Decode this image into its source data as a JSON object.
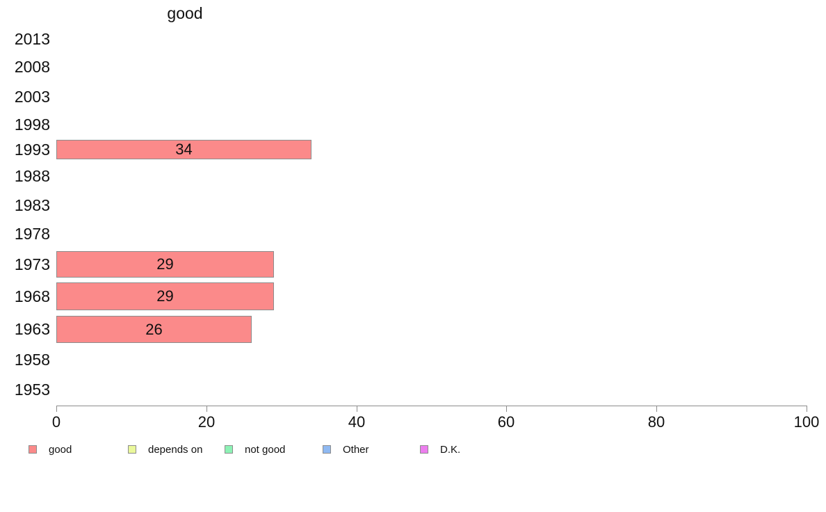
{
  "title": "good",
  "chart_data": {
    "type": "bar",
    "orientation": "horizontal",
    "title": "good",
    "categories": [
      "2013",
      "2008",
      "2003",
      "1998",
      "1993",
      "1988",
      "1983",
      "1978",
      "1973",
      "1968",
      "1963",
      "1958",
      "1953"
    ],
    "series": [
      {
        "name": "good",
        "color": "#fb8a8a",
        "values": [
          null,
          null,
          null,
          null,
          34,
          null,
          null,
          null,
          29,
          29,
          26,
          null,
          null
        ]
      }
    ],
    "bar_value_labels": [
      "34",
      "29",
      "29",
      "26"
    ],
    "xlabel": "",
    "ylabel": "",
    "xlim": [
      0,
      100
    ],
    "x_ticks": [
      "0",
      "20",
      "40",
      "60",
      "80",
      "100"
    ],
    "grid": false,
    "legend_position": "bottom"
  },
  "legend": {
    "items": [
      {
        "label": "good",
        "color": "#fb8a8a"
      },
      {
        "label": "depends on",
        "color": "#eaf89b"
      },
      {
        "label": "not good",
        "color": "#8df2b5"
      },
      {
        "label": "Other",
        "color": "#8fb9f2"
      },
      {
        "label": "D.K.",
        "color": "#ec7eee"
      }
    ]
  },
  "colors": {
    "axis": "#8c8c8c",
    "bar_border": "#8c8c8c",
    "text": "#111111"
  }
}
